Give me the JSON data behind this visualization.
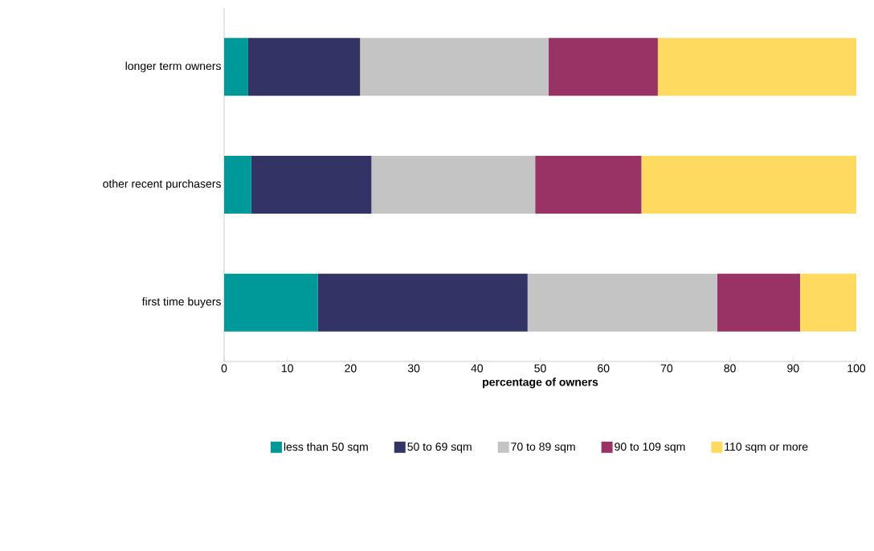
{
  "chart_data": {
    "type": "bar",
    "orientation": "horizontal",
    "stacked": true,
    "xlabel": "percentage of owners",
    "categories": [
      "longer term owners",
      "other recent purchasers",
      "first time buyers"
    ],
    "series": [
      {
        "name": "less than 50 sqm",
        "color": "#009999",
        "values": [
          3.8,
          4.3,
          14.8
        ]
      },
      {
        "name": "50 to 69 sqm",
        "color": "#333366",
        "values": [
          17.7,
          19.0,
          33.2
        ]
      },
      {
        "name": "70 to 89 sqm",
        "color": "#c4c4c4",
        "values": [
          29.8,
          25.9,
          30.0
        ]
      },
      {
        "name": "90 to 109 sqm",
        "color": "#993366",
        "values": [
          17.3,
          16.8,
          13.1
        ]
      },
      {
        "name": "110 sqm or more",
        "color": "#ffda61",
        "values": [
          31.4,
          34.0,
          8.9
        ]
      }
    ],
    "xlim": [
      0,
      100
    ],
    "xticks": [
      0,
      10,
      20,
      30,
      40,
      50,
      60,
      70,
      80,
      90,
      100
    ],
    "legend": "bottom",
    "grid": false
  }
}
